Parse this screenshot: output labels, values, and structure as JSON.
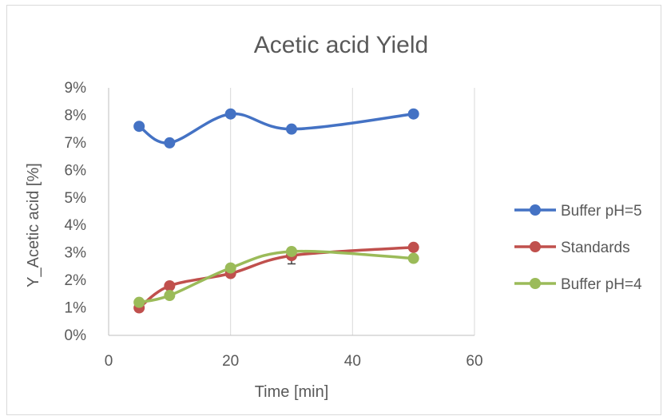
{
  "chart_data": {
    "type": "line",
    "title": "Acetic acid Yield",
    "xlabel": "Time [min]",
    "ylabel": "Y_Acetic acid [%]",
    "xlim": [
      0,
      60
    ],
    "ylim": [
      0,
      0.09
    ],
    "x_ticks": [
      "0",
      "20",
      "40",
      "60"
    ],
    "y_ticks": [
      "0%",
      "1%",
      "2%",
      "3%",
      "4%",
      "5%",
      "6%",
      "7%",
      "8%",
      "9%"
    ],
    "grid": "vertical",
    "legend_position": "right",
    "smooth": true,
    "series": [
      {
        "name": "Buffer pH=5",
        "color": "#4472c4",
        "x": [
          5,
          10,
          20,
          30,
          50
        ],
        "y": [
          0.076,
          0.07,
          0.0805,
          0.075,
          0.0805
        ]
      },
      {
        "name": "Standards",
        "color": "#c0504d",
        "x": [
          5,
          10,
          20,
          30,
          50
        ],
        "y": [
          0.01,
          0.018,
          0.0225,
          0.029,
          0.032
        ],
        "error": [
          0,
          0,
          0,
          0.003,
          0
        ]
      },
      {
        "name": "Buffer pH=4",
        "color": "#9bbb59",
        "x": [
          5,
          10,
          20,
          30,
          50
        ],
        "y": [
          0.012,
          0.0145,
          0.0245,
          0.0305,
          0.028
        ]
      }
    ]
  }
}
